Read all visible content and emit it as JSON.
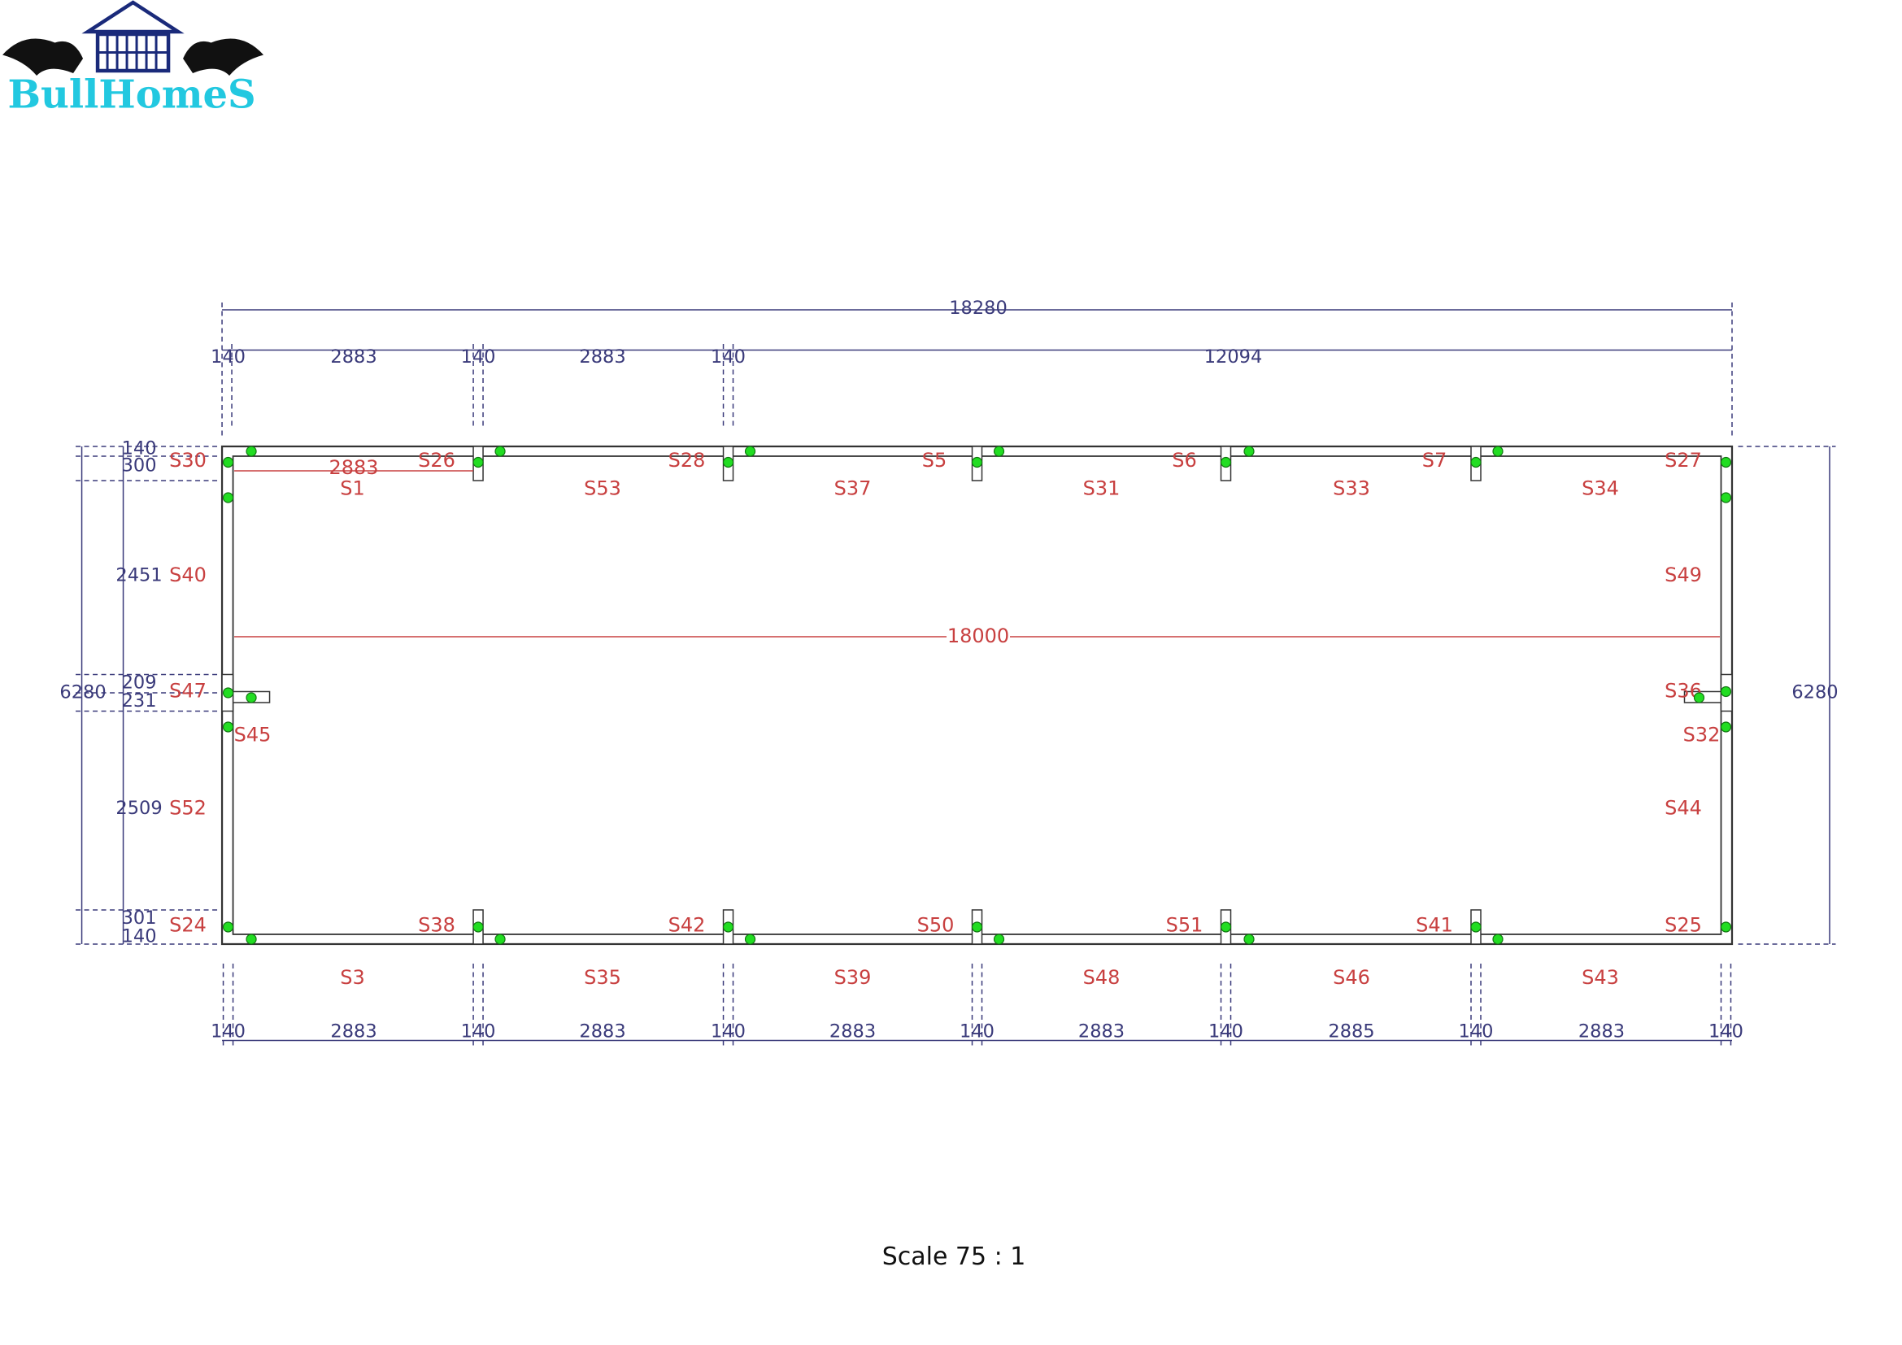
{
  "logo": {
    "text": "BullHomeS"
  },
  "dimensions": {
    "overall_length": 18280,
    "top": [
      140,
      2883,
      140,
      2883,
      140,
      12094
    ],
    "bottom": [
      140,
      2883,
      140,
      2883,
      140,
      2883,
      140,
      2883,
      140,
      2885,
      140,
      2883,
      140
    ],
    "left": [
      140,
      300,
      2451,
      209,
      231,
      2509,
      301,
      140
    ],
    "left_overall": 6280,
    "right_overall": 6280,
    "inner_length": 18000,
    "inner_bay": 2883
  },
  "sections": [
    "S30",
    "S26",
    "S28",
    "S5",
    "S6",
    "S7",
    "S27",
    "S1",
    "S53",
    "S37",
    "S31",
    "S33",
    "S34",
    "S40",
    "S49",
    "S47",
    "S36",
    "S45",
    "S32",
    "S52",
    "S44",
    "S24",
    "S38",
    "S42",
    "S50",
    "S51",
    "S41",
    "S25",
    "S3",
    "S35",
    "S39",
    "S48",
    "S46",
    "S43"
  ],
  "footer": {
    "scale": "Scale 75 : 1"
  }
}
